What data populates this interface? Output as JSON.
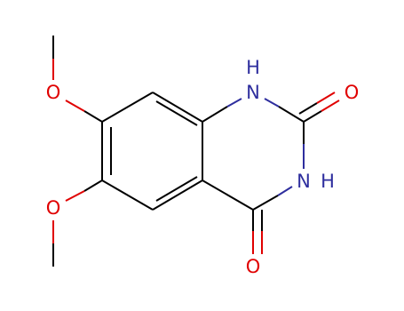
{
  "atoms": {
    "o_7": "O",
    "o_6": "O",
    "h_1": "H",
    "n_1": "N",
    "o_2": "O",
    "n_3": "N",
    "h_3": "H",
    "o_4": "O"
  }
}
